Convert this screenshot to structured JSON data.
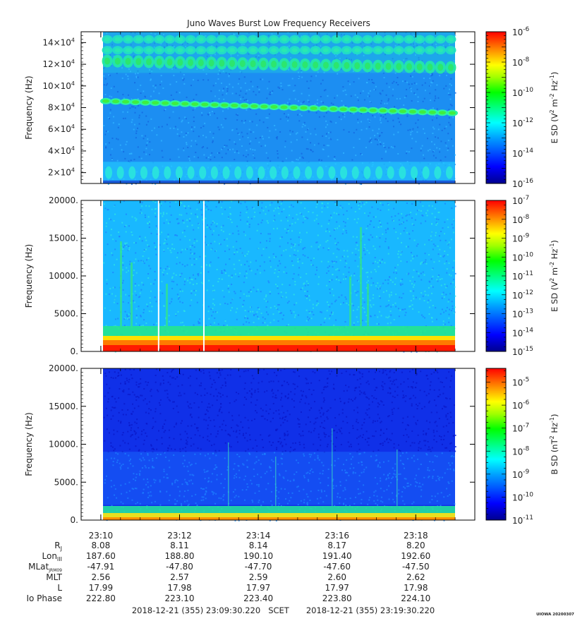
{
  "title": "Juno Waves Burst Low Frequency Receivers",
  "chart_data": [
    {
      "type": "heatmap",
      "id": "panel-1",
      "ylabel": "Frequency (Hz)",
      "y_ticks": [
        {
          "value": 20000,
          "mant": "2",
          "exp": "4"
        },
        {
          "value": 40000,
          "mant": "4",
          "exp": "4"
        },
        {
          "value": 60000,
          "mant": "6",
          "exp": "4"
        },
        {
          "value": 80000,
          "mant": "8",
          "exp": "4"
        },
        {
          "value": 100000,
          "mant": "10",
          "exp": "4"
        },
        {
          "value": 120000,
          "mant": "12",
          "exp": "4"
        },
        {
          "value": 140000,
          "mant": "14",
          "exp": "4"
        }
      ],
      "ylim": [
        10000,
        150000
      ],
      "colorbar_label": "E SD (V2 m-2 Hz-1)",
      "colorbar_ticks": [
        "-6",
        "-8",
        "-10",
        "-12",
        "-14",
        "-16"
      ],
      "colorbar_range": [
        -16,
        -6
      ],
      "features": [
        {
          "name": "upper bands",
          "freq_start": 143000,
          "freq_end": 143000
        },
        {
          "name": "upper bands",
          "freq_start": 133000,
          "freq_end": 133000
        },
        {
          "name": "upper bands",
          "freq_start": 123000,
          "freq_end": 117000
        },
        {
          "name": "emission line",
          "freq_start": 86000,
          "freq_end": 75000
        },
        {
          "name": "low band",
          "freq_start": 20000,
          "freq_end": 20000
        }
      ]
    },
    {
      "type": "heatmap",
      "id": "panel-2",
      "ylabel": "Frequency (Hz)",
      "y_ticks": [
        "0.",
        "5000.",
        "10000.",
        "15000.",
        "20000."
      ],
      "y_tick_values": [
        0,
        5000,
        10000,
        15000,
        20000
      ],
      "ylim": [
        0,
        20000
      ],
      "colorbar_label": "E SD (V2 m-2 Hz-1)",
      "colorbar_ticks": [
        "-7",
        "-8",
        "-9",
        "-10",
        "-11",
        "-12",
        "-13",
        "-14",
        "-15"
      ],
      "colorbar_range": [
        -15,
        -7
      ],
      "gaps_minutes": [
        1.95,
        3.1
      ]
    },
    {
      "type": "heatmap",
      "id": "panel-3",
      "ylabel": "Frequency (Hz)",
      "y_ticks": [
        "0.",
        "5000.",
        "10000.",
        "15000.",
        "20000."
      ],
      "y_tick_values": [
        0,
        5000,
        10000,
        15000,
        20000
      ],
      "ylim": [
        0,
        20000
      ],
      "colorbar_label": "B SD (nT2 Hz-1)",
      "colorbar_ticks": [
        "-5",
        "-6",
        "-7",
        "-8",
        "-9",
        "-10",
        "-11"
      ],
      "colorbar_range": [
        -11,
        -4.4
      ]
    }
  ],
  "x_axis": {
    "range_minutes": [
      0,
      10
    ],
    "tick_labels": [
      "23:10",
      "23:12",
      "23:14",
      "23:16",
      "23:18"
    ],
    "tick_minutes": [
      0.5,
      2.5,
      4.5,
      6.5,
      8.5
    ]
  },
  "ephemeris": {
    "rows": [
      {
        "label": "R",
        "sub": "J",
        "values": [
          "8.08",
          "8.11",
          "8.14",
          "8.17",
          "8.20"
        ]
      },
      {
        "label": "Lon",
        "sub": "III",
        "values": [
          "187.60",
          "188.80",
          "190.10",
          "191.40",
          "192.60"
        ]
      },
      {
        "label": "MLat",
        "sub": "JRM09",
        "values": [
          "-47.91",
          "-47.80",
          "-47.70",
          "-47.60",
          "-47.50"
        ]
      },
      {
        "label": "MLT",
        "sub": "",
        "values": [
          "2.56",
          "2.57",
          "2.59",
          "2.60",
          "2.62"
        ]
      },
      {
        "label": "L",
        "sub": "",
        "values": [
          "17.99",
          "17.98",
          "17.97",
          "17.97",
          "17.98"
        ]
      },
      {
        "label": "Io Phase",
        "sub": "",
        "values": [
          "222.80",
          "223.10",
          "223.40",
          "223.80",
          "224.10"
        ]
      }
    ]
  },
  "footer": {
    "start": "2018-12-21 (355) 23:09:30.220",
    "scet": "SCET",
    "end": "2018-12-21 (355) 23:19:30.220",
    "credit": "UIOWA 20200307"
  },
  "colors": {
    "jet": [
      "#00008f",
      "#0000ff",
      "#0080ff",
      "#00ffff",
      "#00ff80",
      "#00ff00",
      "#80ff00",
      "#ffff00",
      "#ff8000",
      "#ff0000"
    ]
  }
}
